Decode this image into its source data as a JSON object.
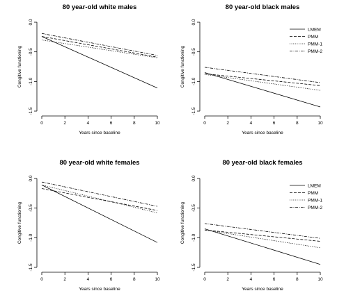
{
  "chart_data": [
    {
      "type": "line",
      "title": "80 year-old white males",
      "xlabel": "Years since baseline",
      "ylabel": "Congitive functioning",
      "xlim": [
        0,
        10
      ],
      "ylim": [
        -1.5,
        0.0
      ],
      "xticks": [
        "0",
        "2",
        "4",
        "6",
        "8",
        "10"
      ],
      "yticks": [
        "0.0",
        "-0.5",
        "-1.0",
        "-1.5"
      ],
      "legend": false,
      "series": [
        {
          "name": "LMEM",
          "x": [
            0,
            10
          ],
          "y": [
            -0.24,
            -1.11
          ],
          "dash": "solid"
        },
        {
          "name": "PMM",
          "x": [
            0,
            10
          ],
          "y": [
            -0.24,
            -0.59
          ],
          "dash": "dashed"
        },
        {
          "name": "PMM-1",
          "x": [
            0,
            10
          ],
          "y": [
            -0.3,
            -0.6
          ],
          "dash": "dotted"
        },
        {
          "name": "PMM-2",
          "x": [
            0,
            10
          ],
          "y": [
            -0.19,
            -0.56
          ],
          "dash": "dotdash"
        }
      ]
    },
    {
      "type": "line",
      "title": "80 year-old black males",
      "xlabel": "Years since baseline",
      "ylabel": "Congitive functioning",
      "xlim": [
        0,
        10
      ],
      "ylim": [
        -1.5,
        0.0
      ],
      "xticks": [
        "0",
        "2",
        "4",
        "6",
        "8",
        "10"
      ],
      "yticks": [
        "0.0",
        "-0.5",
        "-1.0",
        "-1.5"
      ],
      "legend": true,
      "legend_position": "top-right",
      "series": [
        {
          "name": "LMEM",
          "x": [
            0,
            10
          ],
          "y": [
            -0.85,
            -1.43
          ],
          "dash": "solid"
        },
        {
          "name": "PMM",
          "x": [
            0,
            10
          ],
          "y": [
            -0.87,
            -1.07
          ],
          "dash": "dashed"
        },
        {
          "name": "PMM-1",
          "x": [
            0,
            10
          ],
          "y": [
            -0.88,
            -1.15
          ],
          "dash": "dotted"
        },
        {
          "name": "PMM-2",
          "x": [
            0,
            10
          ],
          "y": [
            -0.76,
            -1.02
          ],
          "dash": "dotdash"
        }
      ]
    },
    {
      "type": "line",
      "title": "80 year-old white females",
      "xlabel": "Years since baseline",
      "ylabel": "Congitive functioning",
      "xlim": [
        0,
        10
      ],
      "ylim": [
        -1.5,
        0.0
      ],
      "xticks": [
        "0",
        "2",
        "4",
        "6",
        "8",
        "10"
      ],
      "yticks": [
        "0.0",
        "-0.5",
        "-1.0",
        "-1.5"
      ],
      "legend": false,
      "series": [
        {
          "name": "LMEM",
          "x": [
            0,
            10
          ],
          "y": [
            -0.11,
            -1.08
          ],
          "dash": "solid"
        },
        {
          "name": "PMM",
          "x": [
            0,
            10
          ],
          "y": [
            -0.17,
            -0.54
          ],
          "dash": "dashed"
        },
        {
          "name": "PMM-1",
          "x": [
            0,
            10
          ],
          "y": [
            -0.11,
            -0.58
          ],
          "dash": "dotted"
        },
        {
          "name": "PMM-2",
          "x": [
            0,
            10
          ],
          "y": [
            -0.06,
            -0.47
          ],
          "dash": "dotdash"
        }
      ]
    },
    {
      "type": "line",
      "title": "80 year-old black females",
      "xlabel": "Years since baseline",
      "ylabel": "Congitive functioning",
      "xlim": [
        0,
        10
      ],
      "ylim": [
        -1.5,
        0.0
      ],
      "xticks": [
        "0",
        "2",
        "4",
        "6",
        "8",
        "10"
      ],
      "yticks": [
        "0.0",
        "-0.5",
        "-1.0",
        "-1.5"
      ],
      "legend": true,
      "legend_position": "top-right",
      "series": [
        {
          "name": "LMEM",
          "x": [
            0,
            10
          ],
          "y": [
            -0.85,
            -1.45
          ],
          "dash": "solid"
        },
        {
          "name": "PMM",
          "x": [
            0,
            10
          ],
          "y": [
            -0.87,
            -1.06
          ],
          "dash": "dashed"
        },
        {
          "name": "PMM-1",
          "x": [
            0,
            10
          ],
          "y": [
            -0.87,
            -1.17
          ],
          "dash": "dotted"
        },
        {
          "name": "PMM-2",
          "x": [
            0,
            10
          ],
          "y": [
            -0.76,
            -1.01
          ],
          "dash": "dotdash"
        }
      ]
    }
  ]
}
